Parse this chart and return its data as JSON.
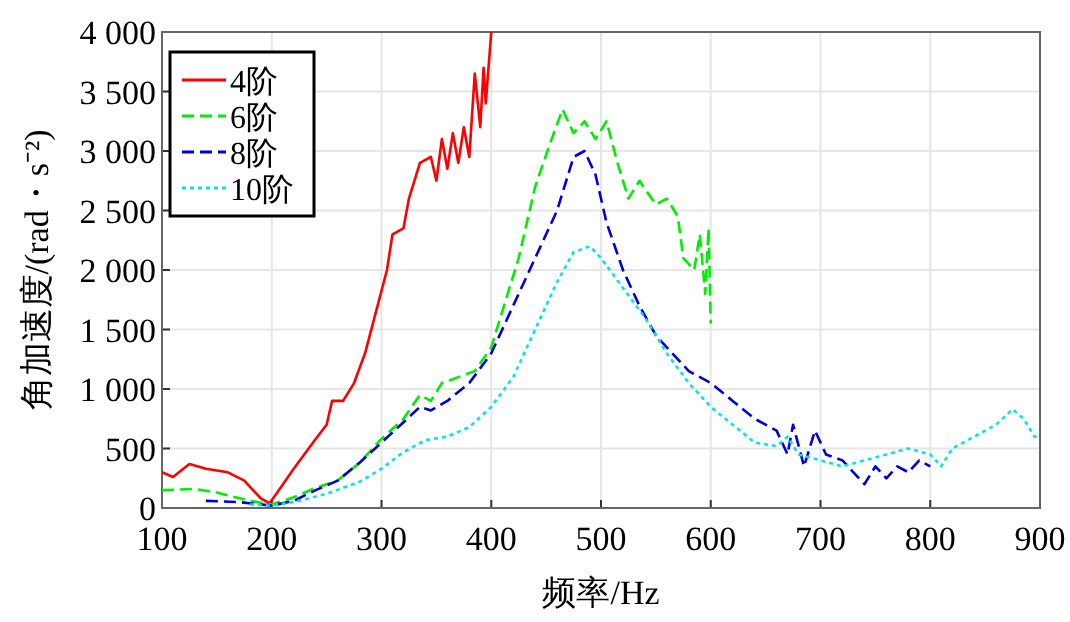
{
  "chart_data": {
    "type": "line",
    "xlabel": "频率/Hz",
    "ylabel": "角加速度/(rad・s⁻²)",
    "xlim": [
      100,
      900
    ],
    "xticks": [
      100,
      200,
      300,
      400,
      500,
      600,
      700,
      800,
      900
    ],
    "ylim": [
      0,
      4000
    ],
    "yticks": [
      0,
      500,
      {
        "value": 1000,
        "label": "1 000"
      },
      {
        "value": 1500,
        "label": "1 500"
      },
      {
        "value": 2000,
        "label": "2 000"
      },
      {
        "value": 2500,
        "label": "2 500"
      },
      {
        "value": 3000,
        "label": "3 000"
      },
      {
        "value": 3500,
        "label": "3 500"
      },
      {
        "value": 4000,
        "label": "4 000"
      }
    ],
    "grid": true,
    "legend": "top left",
    "marker": "none",
    "series": [
      {
        "name": "4阶",
        "color": "#ff0000",
        "line_style": "solid",
        "x": [
          100,
          110,
          125,
          140,
          160,
          175,
          190,
          198,
          205,
          220,
          240,
          250,
          255,
          265,
          275,
          285,
          295,
          305,
          310,
          320,
          325,
          335,
          345,
          350,
          355,
          360,
          365,
          370,
          375,
          380,
          385,
          390,
          393,
          395,
          400
        ],
        "values": [
          300,
          260,
          370,
          330,
          300,
          230,
          80,
          40,
          130,
          330,
          580,
          700,
          900,
          900,
          1050,
          1300,
          1650,
          2000,
          2300,
          2350,
          2600,
          2900,
          2950,
          2750,
          3100,
          2850,
          3150,
          2900,
          3200,
          2950,
          3650,
          3200,
          3700,
          3400,
          4000
        ]
      },
      {
        "name": "6阶",
        "color": "#00ee00",
        "line_style": "dashed",
        "x": [
          100,
          130,
          150,
          180,
          200,
          220,
          240,
          260,
          280,
          300,
          320,
          335,
          345,
          355,
          370,
          385,
          400,
          410,
          425,
          440,
          455,
          465,
          475,
          485,
          495,
          505,
          515,
          525,
          535,
          550,
          560,
          570,
          575,
          585,
          590,
          595,
          598,
          600
        ],
        "values": [
          150,
          160,
          130,
          60,
          30,
          90,
          170,
          230,
          380,
          580,
          750,
          950,
          900,
          1050,
          1100,
          1150,
          1350,
          1650,
          2100,
          2700,
          3100,
          3350,
          3150,
          3250,
          3100,
          3250,
          2900,
          2600,
          2750,
          2550,
          2600,
          2450,
          2100,
          2000,
          2300,
          1800,
          2350,
          1550
        ]
      },
      {
        "name": "8阶",
        "color": "#0000dd",
        "line_style": "dashed",
        "x": [
          140,
          170,
          200,
          220,
          240,
          260,
          280,
          300,
          320,
          335,
          345,
          360,
          380,
          400,
          420,
          440,
          460,
          475,
          485,
          495,
          505,
          520,
          535,
          550,
          565,
          580,
          600,
          620,
          640,
          660,
          670,
          675,
          685,
          695,
          705,
          720,
          730,
          740,
          750,
          760,
          770,
          780,
          790,
          800
        ],
        "values": [
          60,
          50,
          20,
          60,
          150,
          230,
          380,
          550,
          720,
          850,
          820,
          900,
          1050,
          1300,
          1700,
          2100,
          2500,
          2950,
          3000,
          2800,
          2400,
          2000,
          1700,
          1450,
          1300,
          1150,
          1050,
          900,
          750,
          650,
          450,
          700,
          350,
          650,
          450,
          400,
          300,
          200,
          350,
          250,
          350,
          300,
          400,
          350
        ]
      },
      {
        "name": "10阶",
        "color": "#00e5ee",
        "line_style": "dotted",
        "x": [
          180,
          200,
          220,
          250,
          280,
          300,
          320,
          340,
          360,
          380,
          400,
          420,
          440,
          460,
          475,
          490,
          500,
          520,
          540,
          560,
          580,
          600,
          620,
          640,
          660,
          670,
          680,
          700,
          720,
          740,
          760,
          780,
          800,
          810,
          820,
          840,
          860,
          875,
          885,
          895,
          900
        ],
        "values": [
          30,
          20,
          50,
          120,
          220,
          330,
          470,
          570,
          600,
          680,
          850,
          1100,
          1500,
          1900,
          2150,
          2200,
          2100,
          1850,
          1600,
          1300,
          1050,
          850,
          700,
          550,
          520,
          600,
          450,
          400,
          350,
          400,
          450,
          500,
          450,
          350,
          500,
          600,
          700,
          830,
          750,
          600,
          600
        ]
      }
    ]
  }
}
